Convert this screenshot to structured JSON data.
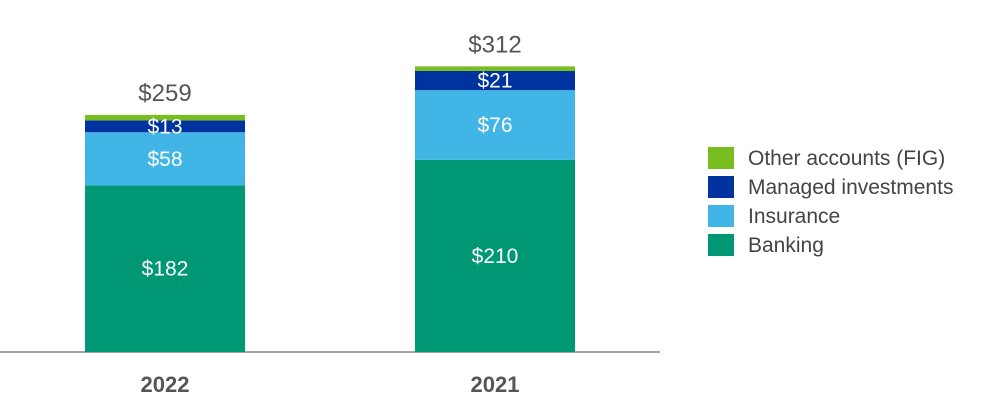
{
  "chart_data": {
    "type": "bar",
    "stacked": true,
    "categories": [
      "2022",
      "2021"
    ],
    "series": [
      {
        "name": "Banking",
        "values": [
          182,
          210
        ],
        "labels": [
          "$182",
          "$210"
        ],
        "color": "#009874"
      },
      {
        "name": "Insurance",
        "values": [
          58,
          76
        ],
        "labels": [
          "$58",
          "$76"
        ],
        "color": "#41B6E6"
      },
      {
        "name": "Managed investments",
        "values": [
          13,
          21
        ],
        "labels": [
          "$13",
          "$21"
        ],
        "color": "#0033A0"
      },
      {
        "name": "Other accounts (FIG)",
        "values": [
          6,
          5
        ],
        "labels": [
          "",
          ""
        ],
        "color": "#78BE20"
      }
    ],
    "totals": [
      "$259",
      "$312"
    ],
    "legend": [
      "Other accounts (FIG)",
      "Managed investments",
      "Insurance",
      "Banking"
    ],
    "legend_position": "right",
    "title": "",
    "xlabel": "",
    "ylabel": "",
    "ylim": [
      0,
      320
    ],
    "grid": false,
    "axis_color": "#a6a6a6"
  }
}
